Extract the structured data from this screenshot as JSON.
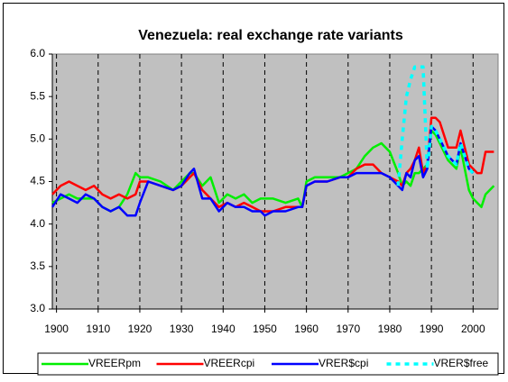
{
  "chart_data": {
    "type": "line",
    "title": "Venezuela: real exchange rate variants",
    "x": [
      1899,
      1901,
      1903,
      1905,
      1907,
      1909,
      1911,
      1913,
      1915,
      1917,
      1919,
      1920,
      1922,
      1925,
      1928,
      1930,
      1932,
      1933,
      1935,
      1937,
      1939,
      1941,
      1943,
      1945,
      1947,
      1949,
      1950,
      1952,
      1955,
      1958,
      1959,
      1960,
      1962,
      1965,
      1968,
      1970,
      1972,
      1974,
      1976,
      1978,
      1980,
      1982,
      1983,
      1984,
      1985,
      1986,
      1987,
      1988,
      1989,
      1990,
      1991,
      1992,
      1994,
      1996,
      1997,
      1999,
      2000,
      2001,
      2002,
      2003,
      2005
    ],
    "series": [
      {
        "name": "VREERpm",
        "color": "#00ee00",
        "values": [
          4.25,
          4.3,
          4.35,
          4.3,
          4.3,
          4.3,
          4.2,
          4.15,
          4.2,
          4.35,
          4.6,
          4.55,
          4.55,
          4.5,
          4.4,
          4.5,
          4.6,
          4.6,
          4.45,
          4.55,
          4.25,
          4.35,
          4.3,
          4.35,
          4.25,
          4.3,
          4.3,
          4.3,
          4.25,
          4.3,
          4.2,
          4.5,
          4.55,
          4.55,
          4.55,
          4.6,
          4.65,
          4.8,
          4.9,
          4.95,
          4.85,
          4.6,
          4.45,
          4.5,
          4.45,
          4.6,
          4.6,
          4.65,
          4.7,
          5.1,
          5.05,
          4.95,
          4.75,
          4.65,
          4.9,
          4.4,
          4.3,
          4.25,
          4.2,
          4.35,
          4.45
        ]
      },
      {
        "name": "VREERcpi",
        "color": "#ff0000",
        "values": [
          4.35,
          4.45,
          4.5,
          4.45,
          4.4,
          4.45,
          4.35,
          4.3,
          4.35,
          4.3,
          4.35,
          4.5,
          4.5,
          4.45,
          4.4,
          4.45,
          4.55,
          4.6,
          4.4,
          4.3,
          4.2,
          4.25,
          4.2,
          4.25,
          4.2,
          4.15,
          4.15,
          4.15,
          4.2,
          4.2,
          4.2,
          4.45,
          4.5,
          4.5,
          4.55,
          4.55,
          4.65,
          4.7,
          4.7,
          4.6,
          4.55,
          4.5,
          4.45,
          4.6,
          4.65,
          4.75,
          4.9,
          4.6,
          4.7,
          5.25,
          5.25,
          5.2,
          4.9,
          4.9,
          5.1,
          4.7,
          4.65,
          4.6,
          4.6,
          4.85,
          4.85
        ]
      },
      {
        "name": "VRER$cpi",
        "color": "#0000ff",
        "values": [
          4.2,
          4.35,
          4.3,
          4.25,
          4.35,
          4.3,
          4.2,
          4.15,
          4.2,
          4.1,
          4.1,
          4.25,
          4.5,
          4.45,
          4.4,
          4.45,
          4.6,
          4.65,
          4.3,
          4.3,
          4.15,
          4.25,
          4.2,
          4.2,
          4.15,
          4.15,
          4.1,
          4.15,
          4.15,
          4.2,
          4.2,
          4.45,
          4.5,
          4.5,
          4.55,
          4.55,
          4.6,
          4.6,
          4.6,
          4.6,
          4.55,
          4.45,
          4.4,
          4.6,
          4.55,
          4.75,
          4.8,
          4.55,
          4.65,
          5.15,
          5.1,
          5.0,
          4.8,
          4.7,
          4.95,
          4.65,
          4.6,
          null,
          null,
          null,
          null
        ]
      },
      {
        "name": "VRER$free",
        "color": "#00ffff",
        "dashed": true,
        "values": [
          null,
          null,
          null,
          null,
          null,
          null,
          null,
          null,
          null,
          null,
          null,
          null,
          null,
          null,
          null,
          null,
          null,
          null,
          null,
          null,
          null,
          null,
          null,
          null,
          null,
          null,
          null,
          null,
          null,
          null,
          null,
          null,
          null,
          null,
          null,
          null,
          null,
          null,
          null,
          null,
          null,
          4.45,
          5.0,
          5.5,
          5.7,
          5.85,
          5.85,
          5.85,
          4.65,
          5.15,
          5.1,
          5.0,
          4.8,
          4.7,
          4.95,
          4.65,
          4.6,
          null,
          null,
          null,
          null
        ]
      }
    ],
    "xlim": [
      1899,
      2006
    ],
    "xticks": [
      1900,
      1910,
      1920,
      1930,
      1940,
      1950,
      1960,
      1970,
      1980,
      1990,
      2000
    ],
    "ylim": [
      3,
      6
    ],
    "yticks": [
      {
        "value": 3,
        "label": "3.0"
      },
      3.5,
      {
        "value": 4,
        "label": "4.0"
      },
      4.5,
      {
        "value": 5,
        "label": "5.0"
      },
      5.5,
      {
        "value": 6,
        "label": "6.0"
      }
    ],
    "grid": true,
    "plot_background": "#c0c0c0"
  }
}
